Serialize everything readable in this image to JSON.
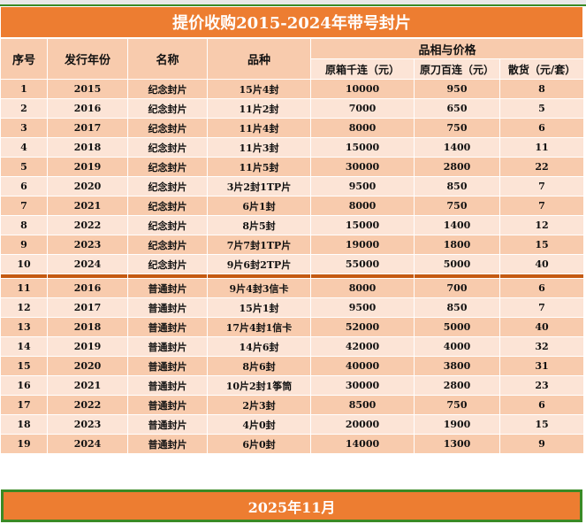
{
  "title": "提价收购2015-2024年带号封片",
  "headers": {
    "seq": "序号",
    "year": "发行年份",
    "name": "名称",
    "variety": "品种",
    "group": "品相与价格",
    "box": "原箱千连（元）",
    "knife": "原刀百连（元）",
    "loose": "散货（元/套）"
  },
  "rows": [
    [
      "1",
      "2015",
      "纪念封片",
      "15片4封",
      "10000",
      "950",
      "8"
    ],
    [
      "2",
      "2016",
      "纪念封片",
      "11片2封",
      "7000",
      "650",
      "5"
    ],
    [
      "3",
      "2017",
      "纪念封片",
      "11片4封",
      "8000",
      "750",
      "6"
    ],
    [
      "4",
      "2018",
      "纪念封片",
      "11片3封",
      "15000",
      "1400",
      "11"
    ],
    [
      "5",
      "2019",
      "纪念封片",
      "11片5封",
      "30000",
      "2800",
      "22"
    ],
    [
      "6",
      "2020",
      "纪念封片",
      "3片2封1TP片",
      "9500",
      "850",
      "7"
    ],
    [
      "7",
      "2021",
      "纪念封片",
      "6片1封",
      "8000",
      "750",
      "7"
    ],
    [
      "8",
      "2022",
      "纪念封片",
      "8片5封",
      "15000",
      "1400",
      "12"
    ],
    [
      "9",
      "2023",
      "纪念封片",
      "7片7封1TP片",
      "19000",
      "1800",
      "15"
    ],
    [
      "10",
      "2024",
      "纪念封片",
      "9片6封2TP片",
      "55000",
      "5000",
      "40"
    ],
    [
      "11",
      "2016",
      "普通封片",
      "9片4封3信卡",
      "8000",
      "700",
      "6"
    ],
    [
      "12",
      "2017",
      "普通封片",
      "15片1封",
      "9500",
      "850",
      "7"
    ],
    [
      "13",
      "2018",
      "普通封片",
      "17片4封1信卡",
      "52000",
      "5000",
      "40"
    ],
    [
      "14",
      "2019",
      "普通封片",
      "14片6封",
      "42000",
      "4000",
      "32"
    ],
    [
      "15",
      "2020",
      "普通封片",
      "8片6封",
      "40000",
      "3800",
      "31"
    ],
    [
      "16",
      "2021",
      "普通封片",
      "10片2封1筝筒",
      "30000",
      "2800",
      "23"
    ],
    [
      "17",
      "2022",
      "普通封片",
      "2片3封",
      "8500",
      "750",
      "6"
    ],
    [
      "18",
      "2023",
      "普通封片",
      "4片0封",
      "20000",
      "1900",
      "15"
    ],
    [
      "19",
      "2024",
      "普通封片",
      "6片0封",
      "14000",
      "1300",
      "9"
    ]
  ],
  "footer": "2025年11月",
  "colors": {
    "accent": "#ed7d31",
    "row_dark": "#f8cbad",
    "row_light": "#fce4d6",
    "separator": "#c55a11",
    "selection": "#3a8a25"
  }
}
